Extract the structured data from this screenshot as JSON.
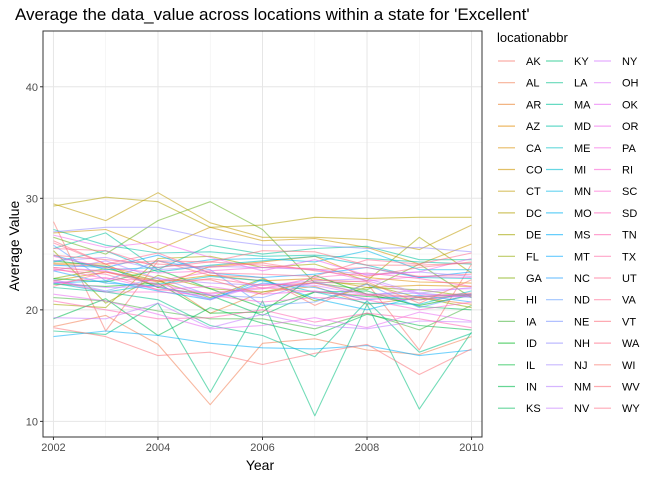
{
  "chart_data": {
    "type": "line",
    "title": "Average the data_value across locations within a state for 'Excellent'",
    "xlabel": "Year",
    "ylabel": "Average Value",
    "xlim": [
      2001.8,
      2010.2
    ],
    "ylim": [
      8.6,
      45
    ],
    "x_ticks": [
      "2002",
      "2004",
      "2006",
      "2008",
      "2010"
    ],
    "x_tick_values": [
      2002,
      2004,
      2006,
      2008,
      2010
    ],
    "y_ticks": [
      "10",
      "20",
      "30",
      "40"
    ],
    "y_tick_values": [
      10,
      20,
      30,
      40
    ],
    "grid": true,
    "legend": {
      "title": "locationabbr",
      "placement": "right"
    },
    "x": [
      2002,
      2003,
      2004,
      2005,
      2006,
      2007,
      2008,
      2009,
      2010
    ],
    "series": [
      {
        "name": "AK",
        "color": "#F8766D",
        "values": [
          27.9,
          18.1,
          24.4,
          23.1,
          22.9,
          20.4,
          22.4,
          16.4,
          24.1
        ]
      },
      {
        "name": "AL",
        "color": "#F27D52",
        "values": [
          18.5,
          19.5,
          16.9,
          11.5,
          17.0,
          17.4,
          16.4,
          16.0,
          17.6
        ]
      },
      {
        "name": "AR",
        "color": "#EA8331",
        "values": [
          24.1,
          23.9,
          22.8,
          19.7,
          21.6,
          22.1,
          20.5,
          21.1,
          20.5
        ]
      },
      {
        "name": "AZ",
        "color": "#E18A00",
        "values": [
          24.2,
          24.1,
          22.0,
          23.9,
          24.3,
          24.8,
          22.9,
          22.5,
          22.4
        ]
      },
      {
        "name": "CA",
        "color": "#D89000",
        "values": [
          22.6,
          23.4,
          22.5,
          23.1,
          22.6,
          22.8,
          22.0,
          22.2,
          22.1
        ]
      },
      {
        "name": "CO",
        "color": "#CD9600",
        "values": [
          26.9,
          27.2,
          25.4,
          27.4,
          26.2,
          26.4,
          25.6,
          24.1,
          25.9
        ]
      },
      {
        "name": "CT",
        "color": "#C09B00",
        "values": [
          29.5,
          28.0,
          30.5,
          27.8,
          26.5,
          26.5,
          26.3,
          25.4,
          27.6
        ]
      },
      {
        "name": "DC",
        "color": "#B3A000",
        "values": [
          29.3,
          30.1,
          29.7,
          27.4,
          27.6,
          28.3,
          28.2,
          28.3,
          28.3
        ]
      },
      {
        "name": "DE",
        "color": "#A3A500",
        "values": [
          20.5,
          20.2,
          24.6,
          24.8,
          23.8,
          24.1,
          22.6,
          26.5,
          23.3
        ]
      },
      {
        "name": "FL",
        "color": "#93AA00",
        "values": [
          25.3,
          20.6,
          23.1,
          21.9,
          21.6,
          22.5,
          22.3,
          21.1,
          20.2
        ]
      },
      {
        "name": "GA",
        "color": "#7FAE00",
        "values": [
          22.8,
          23.7,
          22.6,
          21.1,
          22.8,
          20.8,
          22.0,
          21.8,
          21.2
        ]
      },
      {
        "name": "HI",
        "color": "#68B220",
        "values": [
          26.5,
          25.0,
          28.0,
          29.7,
          27.2,
          22.4,
          21.8,
          24.1,
          21.1
        ]
      },
      {
        "name": "IA",
        "color": "#4BB543",
        "values": [
          21.1,
          20.8,
          19.9,
          19.2,
          19.2,
          18.3,
          19.7,
          18.2,
          20.4
        ]
      },
      {
        "name": "ID",
        "color": "#00B81F",
        "values": [
          22.3,
          22.1,
          22.4,
          19.7,
          19.8,
          23.1,
          21.4,
          20.4,
          21.3
        ]
      },
      {
        "name": "IL",
        "color": "#00BA38",
        "values": [
          22.8,
          22.5,
          23.6,
          21.9,
          20.2,
          21.6,
          21.2,
          20.9,
          21.4
        ]
      },
      {
        "name": "IN",
        "color": "#00BB4E",
        "values": [
          19.2,
          21.0,
          17.7,
          20.2,
          18.8,
          17.7,
          19.6,
          18.6,
          18.2
        ]
      },
      {
        "name": "KS",
        "color": "#00BD5C",
        "values": [
          24.4,
          23.9,
          22.0,
          21.3,
          19.5,
          21.6,
          21.7,
          20.3,
          20.0
        ]
      },
      {
        "name": "KY",
        "color": "#00BF7D",
        "values": [
          18.1,
          17.8,
          20.6,
          12.6,
          20.8,
          10.5,
          20.5,
          11.1,
          18.0
        ]
      },
      {
        "name": "LA",
        "color": "#00C08B",
        "values": [
          22.0,
          21.6,
          20.9,
          18.6,
          17.7,
          15.8,
          20.8,
          16.2,
          17.9
        ]
      },
      {
        "name": "MA",
        "color": "#00C19A",
        "values": [
          25.5,
          26.9,
          23.6,
          25.8,
          25.0,
          25.5,
          25.7,
          24.5,
          24.5
        ]
      },
      {
        "name": "MD",
        "color": "#00C1A7",
        "values": [
          27.2,
          25.8,
          25.1,
          25.2,
          24.8,
          24.9,
          24.6,
          24.3,
          24.1
        ]
      },
      {
        "name": "ME",
        "color": "#00BFC4",
        "values": [
          24.3,
          25.3,
          23.4,
          24.0,
          24.4,
          24.8,
          24.0,
          22.9,
          22.8
        ]
      },
      {
        "name": "MI",
        "color": "#00BDD0",
        "values": [
          22.4,
          21.6,
          22.3,
          23.0,
          22.6,
          21.6,
          20.6,
          20.5,
          21.7
        ]
      },
      {
        "name": "MN",
        "color": "#00B8E7",
        "values": [
          24.9,
          23.6,
          23.8,
          24.5,
          24.6,
          24.3,
          25.3,
          23.6,
          23.6
        ]
      },
      {
        "name": "MO",
        "color": "#00B3F2",
        "values": [
          22.4,
          22.6,
          21.7,
          20.9,
          22.7,
          21.0,
          20.0,
          21.2,
          21.4
        ]
      },
      {
        "name": "MS",
        "color": "#00ADFA",
        "values": [
          17.6,
          18.1,
          17.7,
          17.0,
          16.6,
          16.5,
          16.8,
          15.9,
          16.4
        ]
      },
      {
        "name": "MT",
        "color": "#00A6FF",
        "values": [
          24.0,
          23.8,
          24.9,
          23.3,
          22.9,
          23.2,
          23.8,
          22.9,
          23.4
        ]
      },
      {
        "name": "NC",
        "color": "#27A3FF",
        "values": [
          23.5,
          22.4,
          22.1,
          21.0,
          22.4,
          22.0,
          20.9,
          21.3,
          20.7
        ]
      },
      {
        "name": "ND",
        "color": "#619CFF",
        "values": [
          25.8,
          22.6,
          24.4,
          23.6,
          20.4,
          20.7,
          22.3,
          20.2,
          21.4
        ]
      },
      {
        "name": "NE",
        "color": "#7D96FF",
        "values": [
          22.7,
          21.7,
          22.9,
          21.3,
          21.1,
          22.5,
          21.4,
          21.5,
          21.1
        ]
      },
      {
        "name": "NH",
        "color": "#958DFF",
        "values": [
          27.0,
          27.4,
          27.4,
          26.4,
          25.8,
          25.8,
          25.5,
          25.6,
          25.2
        ]
      },
      {
        "name": "NJ",
        "color": "#A58AFF",
        "values": [
          24.4,
          24.7,
          23.6,
          23.9,
          23.8,
          23.6,
          23.2,
          23.4,
          23.0
        ]
      },
      {
        "name": "NM",
        "color": "#B983FF",
        "values": [
          23.5,
          24.4,
          22.8,
          22.4,
          22.2,
          22.6,
          22.8,
          21.5,
          22.0
        ]
      },
      {
        "name": "NV",
        "color": "#C77CFF",
        "values": [
          19.3,
          19.2,
          20.6,
          18.4,
          19.6,
          18.6,
          18.3,
          19.0,
          18.9
        ]
      },
      {
        "name": "NY",
        "color": "#D376FF",
        "values": [
          22.5,
          22.0,
          22.1,
          20.9,
          22.3,
          22.2,
          21.3,
          21.8,
          21.9
        ]
      },
      {
        "name": "OH",
        "color": "#DE71F9",
        "values": [
          23.8,
          23.5,
          22.3,
          21.4,
          21.9,
          22.4,
          22.6,
          21.4,
          21.2
        ]
      },
      {
        "name": "OK",
        "color": "#E76BF3",
        "values": [
          21.4,
          20.8,
          19.6,
          18.3,
          18.6,
          19.3,
          18.4,
          19.8,
          19.0
        ]
      },
      {
        "name": "OR",
        "color": "#EF67EB",
        "values": [
          26.7,
          25.6,
          26.1,
          24.7,
          23.5,
          24.5,
          23.1,
          23.4,
          24.6
        ]
      },
      {
        "name": "PA",
        "color": "#F564E3",
        "values": [
          22.4,
          22.9,
          21.8,
          22.1,
          21.4,
          21.7,
          21.0,
          20.9,
          21.3
        ]
      },
      {
        "name": "RI",
        "color": "#FA62D4",
        "values": [
          24.8,
          23.8,
          23.3,
          23.5,
          23.8,
          23.7,
          22.6,
          23.0,
          22.9
        ]
      },
      {
        "name": "SC",
        "color": "#FD61D1",
        "values": [
          22.6,
          21.6,
          21.6,
          21.3,
          20.7,
          21.1,
          20.9,
          20.0,
          20.7
        ]
      },
      {
        "name": "SD",
        "color": "#FF62BC",
        "values": [
          23.7,
          22.8,
          22.6,
          23.4,
          21.9,
          22.9,
          23.3,
          22.8,
          22.1
        ]
      },
      {
        "name": "TN",
        "color": "#FF64B0",
        "values": [
          20.8,
          20.0,
          19.2,
          19.3,
          20.0,
          18.9,
          19.7,
          19.2,
          18.4
        ]
      },
      {
        "name": "TX",
        "color": "#FF67A4",
        "values": [
          23.6,
          23.2,
          21.8,
          21.5,
          22.0,
          21.6,
          21.3,
          21.1,
          21.4
        ]
      },
      {
        "name": "UT",
        "color": "#FF6C91",
        "values": [
          26.0,
          24.1,
          25.1,
          23.3,
          23.2,
          23.0,
          24.5,
          24.1,
          25.1
        ]
      },
      {
        "name": "VA",
        "color": "#FF6C91",
        "values": [
          25.5,
          25.3,
          23.8,
          24.3,
          24.0,
          23.6,
          23.8,
          23.0,
          23.2
        ]
      },
      {
        "name": "VT",
        "color": "#FC717F",
        "values": [
          26.2,
          24.1,
          24.4,
          24.3,
          25.3,
          25.2,
          24.0,
          24.0,
          24.2
        ]
      },
      {
        "name": "WA",
        "color": "#FF6D86",
        "values": [
          24.9,
          24.5,
          24.1,
          23.8,
          24.2,
          23.5,
          23.0,
          23.8,
          24.3
        ]
      },
      {
        "name": "WI",
        "color": "#F8766D",
        "values": [
          23.8,
          23.4,
          22.6,
          22.7,
          21.4,
          22.7,
          22.5,
          20.6,
          22.7
        ]
      },
      {
        "name": "WV",
        "color": "#FB727A",
        "values": [
          18.4,
          17.6,
          15.9,
          16.2,
          15.1,
          16.1,
          16.9,
          14.2,
          16.5
        ]
      },
      {
        "name": "WY",
        "color": "#FF6E85",
        "values": [
          22.1,
          23.4,
          22.2,
          22.8,
          22.2,
          22.4,
          21.4,
          21.2,
          21.5
        ]
      }
    ]
  }
}
